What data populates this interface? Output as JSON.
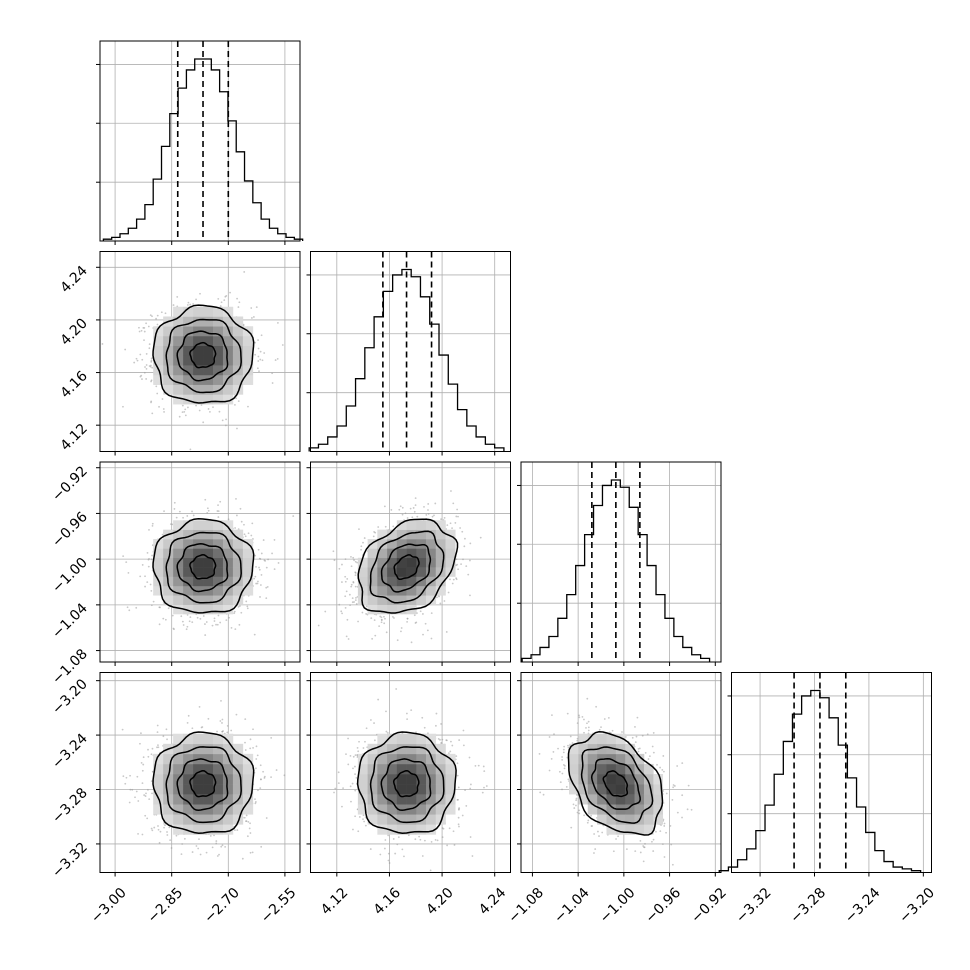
{
  "chart_data": {
    "type": "corner",
    "parameters": [
      {
        "range": [
          -3.04,
          -2.51
        ],
        "ticks": [
          -3.0,
          -2.85,
          -2.7,
          -2.55
        ],
        "tick_labels": [
          "−3.00",
          "−2.85",
          "−2.70",
          "−2.55"
        ],
        "quantiles": [
          -2.834,
          -2.767,
          -2.7
        ],
        "mean": -2.767,
        "sd": 0.066
      },
      {
        "range": [
          4.1,
          4.252
        ],
        "ticks": [
          4.12,
          4.16,
          4.2,
          4.24
        ],
        "tick_labels": [
          "4.12",
          "4.16",
          "4.20",
          "4.24"
        ],
        "quantiles": [
          4.155,
          4.173,
          4.192
        ],
        "mean": 4.173,
        "sd": 0.0185
      },
      {
        "range": [
          -1.09,
          -0.915
        ],
        "ticks": [
          -1.08,
          -1.04,
          -1.0,
          -0.96,
          -0.92
        ],
        "tick_labels": [
          "−1.08",
          "−1.04",
          "−1.00",
          "−0.96",
          "−0.92"
        ],
        "quantiles": [
          -1.028,
          -1.007,
          -0.986
        ],
        "mean": -1.007,
        "sd": 0.0205
      },
      {
        "range": [
          -3.341,
          -3.194
        ],
        "ticks": [
          -3.32,
          -3.28,
          -3.24,
          -3.2
        ],
        "tick_labels": [
          "−3.32",
          "−3.28",
          "−3.24",
          "−3.20"
        ],
        "quantiles": [
          -3.295,
          -3.276,
          -3.257
        ],
        "mean": -3.276,
        "sd": 0.0185
      }
    ],
    "histogram_densities": [
      [
        0.01,
        0.02,
        0.04,
        0.07,
        0.12,
        0.2,
        0.34,
        0.52,
        0.7,
        0.84,
        0.94,
        1.0,
        1.0,
        0.94,
        0.82,
        0.66,
        0.49,
        0.33,
        0.21,
        0.12,
        0.07,
        0.04,
        0.02,
        0.01
      ],
      [
        0.02,
        0.04,
        0.08,
        0.14,
        0.25,
        0.4,
        0.57,
        0.74,
        0.88,
        0.97,
        1.0,
        0.96,
        0.85,
        0.7,
        0.53,
        0.37,
        0.23,
        0.14,
        0.08,
        0.04,
        0.02
      ],
      [
        0.02,
        0.04,
        0.08,
        0.14,
        0.24,
        0.37,
        0.53,
        0.7,
        0.86,
        0.97,
        1.0,
        0.96,
        0.85,
        0.7,
        0.53,
        0.37,
        0.24,
        0.14,
        0.08,
        0.04,
        0.02
      ],
      [
        0.01,
        0.03,
        0.07,
        0.13,
        0.23,
        0.37,
        0.54,
        0.72,
        0.87,
        0.97,
        1.0,
        0.96,
        0.85,
        0.7,
        0.52,
        0.36,
        0.22,
        0.12,
        0.06,
        0.03,
        0.02,
        0.01
      ]
    ],
    "correlations": [
      {
        "x": 0,
        "y": 1,
        "rho": 0.0
      },
      {
        "x": 0,
        "y": 2,
        "rho": 0.0
      },
      {
        "x": 1,
        "y": 2,
        "rho": 0.3
      },
      {
        "x": 0,
        "y": 3,
        "rho": 0.0
      },
      {
        "x": 1,
        "y": 3,
        "rho": 0.0
      },
      {
        "x": 2,
        "y": 3,
        "rho": -0.35
      }
    ],
    "contour_sigmas": [
      0.5,
      1.0,
      1.5,
      2.0
    ],
    "grid": true
  }
}
